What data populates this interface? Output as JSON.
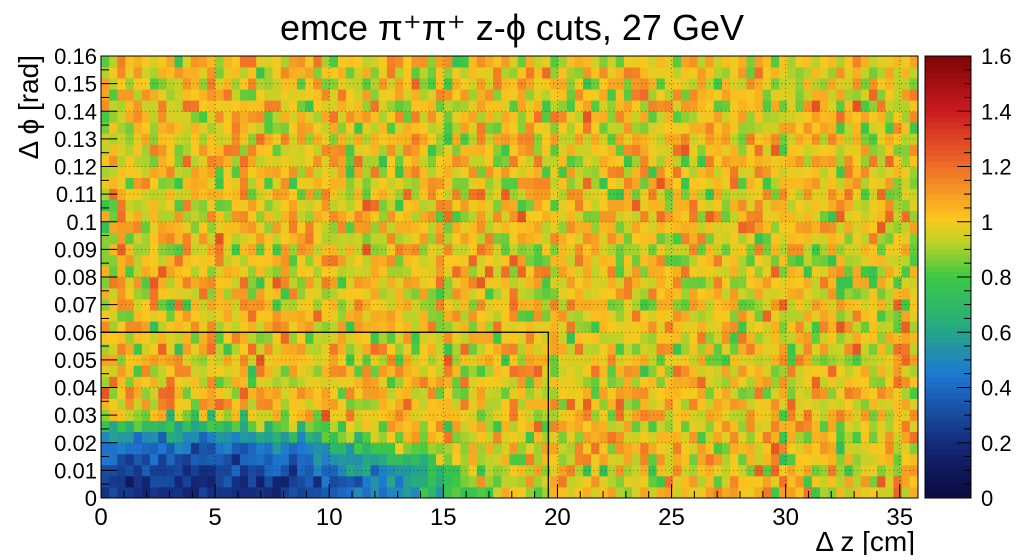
{
  "chart_data": {
    "type": "heatmap",
    "title": "emce π⁺π⁺  z-ϕ cuts, 27 GeV",
    "xlabel": "Δ z [cm]",
    "ylabel": "Δ ϕ [rad]",
    "xlim": [
      0,
      35.8
    ],
    "ylim": [
      0,
      0.16
    ],
    "zlim": [
      0,
      1.6
    ],
    "x_ticks": [
      "0",
      "5",
      "10",
      "15",
      "20",
      "25",
      "30",
      "35"
    ],
    "y_ticks": [
      "0",
      "0.01",
      "0.02",
      "0.03",
      "0.04",
      "0.05",
      "0.06",
      "0.07",
      "0.08",
      "0.09",
      "0.1",
      "0.11",
      "0.12",
      "0.13",
      "0.14",
      "0.15",
      "0.16"
    ],
    "z_ticks": [
      "0",
      "0.2",
      "0.4",
      "0.6",
      "0.8",
      "1",
      "1.2",
      "1.4",
      "1.6"
    ],
    "grid": true,
    "colormap": "kBird-like (dark blue → blue → green → yellow → orange → red → dark red)",
    "bins": {
      "nx": 100,
      "ny": 40
    },
    "depletion_region": {
      "description": "correlation ratio suppressed near origin (two-track merging)",
      "center": [
        2.5,
        0.0
      ],
      "min_value": 0.2,
      "extent_dz": 13.5,
      "extent_dphi": 0.028
    },
    "background_level": 1.0,
    "fluctuation": 0.18,
    "cut_box": {
      "dz_max": 19.6,
      "dphi_max": 0.06
    }
  }
}
